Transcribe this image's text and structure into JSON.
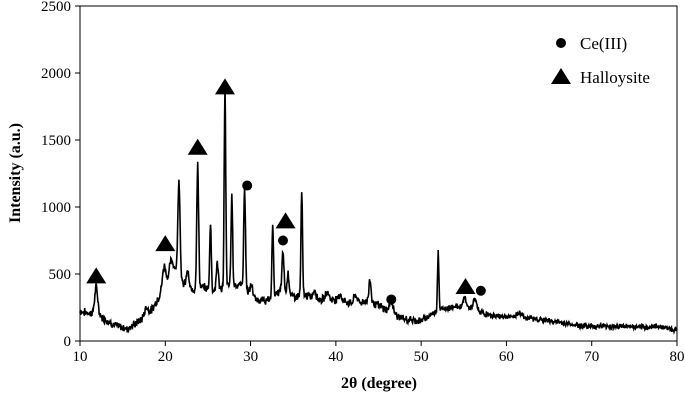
{
  "chart_data": {
    "type": "line",
    "title": "",
    "xlabel": "2θ (degree)",
    "ylabel": "Intensity (a.u.)",
    "xlim": [
      10,
      80
    ],
    "ylim": [
      0,
      2500
    ],
    "x_ticks": [
      "10",
      "20",
      "30",
      "40",
      "50",
      "60",
      "70",
      "80"
    ],
    "y_ticks": [
      "0",
      "500",
      "1000",
      "1500",
      "2000",
      "2500"
    ],
    "grid": false,
    "legend_position": "top-right",
    "legend": [
      {
        "label": "Ce(III)",
        "marker": "circle"
      },
      {
        "label": "Halloysite",
        "marker": "triangle"
      }
    ],
    "series": [
      {
        "color": "#000000",
        "baseline": [
          [
            10.0,
            220
          ],
          [
            12.0,
            200
          ],
          [
            14.0,
            120
          ],
          [
            15.5,
            90
          ],
          [
            17.0,
            150
          ],
          [
            18.5,
            240
          ],
          [
            20.0,
            420
          ],
          [
            21.0,
            560
          ],
          [
            22.0,
            430
          ],
          [
            23.0,
            380
          ],
          [
            24.5,
            400
          ],
          [
            26.0,
            370
          ],
          [
            27.5,
            420
          ],
          [
            29.0,
            420
          ],
          [
            30.5,
            310
          ],
          [
            32.0,
            300
          ],
          [
            33.5,
            370
          ],
          [
            35.0,
            330
          ],
          [
            36.5,
            340
          ],
          [
            38.0,
            310
          ],
          [
            40.0,
            310
          ],
          [
            42.0,
            280
          ],
          [
            44.0,
            300
          ],
          [
            46.0,
            230
          ],
          [
            48.0,
            160
          ],
          [
            50.0,
            150
          ],
          [
            52.0,
            230
          ],
          [
            54.0,
            260
          ],
          [
            56.0,
            240
          ],
          [
            58.0,
            190
          ],
          [
            60.0,
            180
          ],
          [
            62.0,
            175
          ],
          [
            64.0,
            160
          ],
          [
            66.0,
            140
          ],
          [
            68.0,
            120
          ],
          [
            70.0,
            110
          ],
          [
            72.0,
            110
          ],
          [
            74.0,
            110
          ],
          [
            76.0,
            100
          ],
          [
            78.0,
            110
          ],
          [
            80.0,
            80
          ]
        ],
        "peaks": [
          [
            11.9,
            400,
            0.18
          ],
          [
            17.8,
            250,
            0.2
          ],
          [
            19.9,
            560,
            0.2
          ],
          [
            20.7,
            600,
            0.18
          ],
          [
            21.6,
            1200,
            0.13
          ],
          [
            22.6,
            520,
            0.15
          ],
          [
            23.8,
            1310,
            0.11
          ],
          [
            25.3,
            890,
            0.09
          ],
          [
            26.1,
            590,
            0.12
          ],
          [
            27.0,
            1890,
            0.09
          ],
          [
            27.8,
            1100,
            0.09
          ],
          [
            29.3,
            1140,
            0.1
          ],
          [
            30.1,
            420,
            0.15
          ],
          [
            32.6,
            880,
            0.09
          ],
          [
            33.8,
            660,
            0.12
          ],
          [
            34.4,
            510,
            0.12
          ],
          [
            36.0,
            1110,
            0.09
          ],
          [
            37.5,
            380,
            0.18
          ],
          [
            39.0,
            370,
            0.18
          ],
          [
            40.5,
            350,
            0.18
          ],
          [
            42.3,
            340,
            0.2
          ],
          [
            44.0,
            460,
            0.12
          ],
          [
            46.5,
            300,
            0.2
          ],
          [
            52.0,
            670,
            0.08
          ],
          [
            55.1,
            320,
            0.2
          ],
          [
            56.3,
            310,
            0.2
          ],
          [
            61.5,
            210,
            0.3
          ]
        ]
      }
    ],
    "annotations": [
      {
        "marker": "triangle",
        "x": 11.9,
        "y": 490
      },
      {
        "marker": "triangle",
        "x": 20.0,
        "y": 730
      },
      {
        "marker": "triangle",
        "x": 23.8,
        "y": 1450
      },
      {
        "marker": "triangle",
        "x": 27.0,
        "y": 1900
      },
      {
        "marker": "triangle",
        "x": 34.1,
        "y": 900
      },
      {
        "marker": "triangle",
        "x": 55.2,
        "y": 410
      },
      {
        "marker": "circle",
        "x": 29.6,
        "y": 1160
      },
      {
        "marker": "circle",
        "x": 33.8,
        "y": 750
      },
      {
        "marker": "circle",
        "x": 46.5,
        "y": 310
      },
      {
        "marker": "circle",
        "x": 57.0,
        "y": 375
      }
    ]
  }
}
